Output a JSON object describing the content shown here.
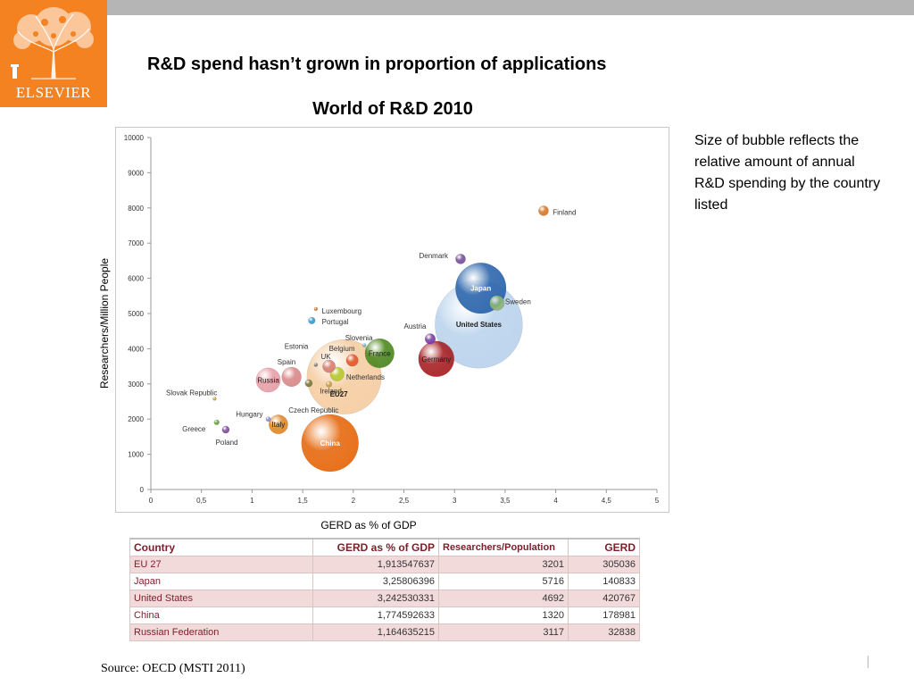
{
  "brand": {
    "logo_text": "ELSEVIER",
    "color": "#f58220"
  },
  "title": "R&D spend hasn’t grown in proportion of applications",
  "subtitle": "World of R&D 2010",
  "note": "Size of bubble reflects the relative amount of annual R&D spending by the country listed",
  "source": "Source: OECD (MSTI 2011)",
  "chart_data": {
    "type": "scatter",
    "title": "World of R&D 2010",
    "xlabel": "GERD as % of GDP",
    "ylabel": "Researchers/Million People",
    "xlim": [
      0,
      5
    ],
    "ylim": [
      0,
      10000
    ],
    "xticks": [
      "0",
      "0,5",
      "1",
      "1,5",
      "2",
      "2,5",
      "3",
      "3,5",
      "4",
      "4,5",
      "5"
    ],
    "yticks": [
      "0",
      "1000",
      "2000",
      "3000",
      "4000",
      "5000",
      "6000",
      "7000",
      "8000",
      "9000",
      "10000"
    ],
    "grid": false,
    "points": [
      {
        "label": "United States",
        "x": 3.24,
        "y": 4690,
        "size": 420767,
        "color": "#a9c8e8",
        "inside": true
      },
      {
        "label": "EU27",
        "x": 1.91,
        "y": 3200,
        "size": 305036,
        "color": "#f2c08a",
        "inside": true
      },
      {
        "label": "China",
        "x": 1.77,
        "y": 1320,
        "size": 178981,
        "color": "#e66a10",
        "inside": true
      },
      {
        "label": "Japan",
        "x": 3.26,
        "y": 5720,
        "size": 140833,
        "color": "#2e67ad",
        "inside": true
      },
      {
        "label": "Germany",
        "x": 2.82,
        "y": 3710,
        "size": 70000,
        "color": "#a82326",
        "inside": true
      },
      {
        "label": "France",
        "x": 2.26,
        "y": 3870,
        "size": 47000,
        "color": "#4f8a22",
        "inside": true
      },
      {
        "label": "Russia",
        "x": 1.16,
        "y": 3110,
        "size": 32838,
        "color": "#e8a0a8",
        "inside": true
      },
      {
        "label": "Spain",
        "x": 1.39,
        "y": 3200,
        "size": 21000,
        "color": "#d98a8a",
        "inside": false,
        "lx": 1.25,
        "ly": 3630
      },
      {
        "label": "Italy",
        "x": 1.26,
        "y": 1850,
        "size": 20000,
        "color": "#e08a2a",
        "inside": true
      },
      {
        "label": "Sweden",
        "x": 3.42,
        "y": 5300,
        "size": 12000,
        "color": "#8db57a",
        "inside": false,
        "lx": 3.5,
        "ly": 5340
      },
      {
        "label": "Netherlands",
        "x": 1.84,
        "y": 3280,
        "size": 11000,
        "color": "#b8c832",
        "inside": false,
        "lx": 1.93,
        "ly": 3200
      },
      {
        "label": "UK",
        "x": 1.76,
        "y": 3500,
        "size": 9000,
        "color": "#d97f73",
        "inside": false,
        "lx": 1.68,
        "ly": 3780
      },
      {
        "label": "Belgium",
        "x": 1.99,
        "y": 3670,
        "size": 8000,
        "color": "#e25a30",
        "inside": false,
        "lx": 1.76,
        "ly": 4010
      },
      {
        "label": "Denmark",
        "x": 3.06,
        "y": 6550,
        "size": 5500,
        "color": "#7a4f9c",
        "inside": false,
        "lx": 2.65,
        "ly": 6650
      },
      {
        "label": "Austria",
        "x": 2.76,
        "y": 4280,
        "size": 6000,
        "color": "#7a3fa3",
        "inside": false,
        "lx": 2.5,
        "ly": 4650
      },
      {
        "label": "Finland",
        "x": 3.88,
        "y": 7920,
        "size": 5500,
        "color": "#d87a2a",
        "inside": false,
        "lx": 3.97,
        "ly": 7880
      },
      {
        "label": "Czech Republic",
        "x": 1.56,
        "y": 3020,
        "size": 3000,
        "color": "#7d7a3e",
        "inside": false,
        "lx": 1.36,
        "ly": 2260
      },
      {
        "label": "Poland",
        "x": 0.74,
        "y": 1700,
        "size": 3000,
        "color": "#8250a0",
        "inside": false,
        "lx": 0.64,
        "ly": 1350
      },
      {
        "label": "Portugal",
        "x": 1.59,
        "y": 4800,
        "size": 2600,
        "color": "#3a9bd0",
        "inside": false,
        "lx": 1.69,
        "ly": 4770
      },
      {
        "label": "Ireland",
        "x": 1.76,
        "y": 2990,
        "size": 2000,
        "color": "#c7a04a",
        "inside": false,
        "lx": 1.67,
        "ly": 2800
      },
      {
        "label": "Greece",
        "x": 0.65,
        "y": 1910,
        "size": 1500,
        "color": "#6aa040",
        "inside": false,
        "lx": 0.31,
        "ly": 1720
      },
      {
        "label": "Hungary",
        "x": 1.16,
        "y": 2000,
        "size": 1300,
        "color": "#8a8acb",
        "inside": false,
        "lx": 0.84,
        "ly": 2140
      },
      {
        "label": "Slovenia",
        "x": 2.11,
        "y": 4100,
        "size": 500,
        "color": "#6ab0c7",
        "inside": false,
        "lx": 1.92,
        "ly": 4310
      },
      {
        "label": "Estonia",
        "x": 1.63,
        "y": 3540,
        "size": 250,
        "color": "#777777",
        "inside": false,
        "lx": 1.32,
        "ly": 4070
      },
      {
        "label": "Luxembourg",
        "x": 1.63,
        "y": 5130,
        "size": 300,
        "color": "#d87a30",
        "inside": false,
        "lx": 1.69,
        "ly": 5080
      },
      {
        "label": "Slovak Republic",
        "x": 0.63,
        "y": 2580,
        "size": 180,
        "color": "#c9a040",
        "inside": false,
        "lx": 0.15,
        "ly": 2750
      }
    ]
  },
  "table": {
    "headers": [
      "Country",
      "GERD as % of GDP",
      "Researchers/Population",
      "GERD"
    ],
    "rows": [
      [
        "EU 27",
        "1,913547637",
        "3201",
        "305036"
      ],
      [
        "Japan",
        "3,25806396",
        "5716",
        "140833"
      ],
      [
        "United States",
        "3,242530331",
        "4692",
        "420767"
      ],
      [
        "China",
        "1,774592633",
        "1320",
        "178981"
      ],
      [
        "Russian Federation",
        "1,164635215",
        "3117",
        "32838"
      ]
    ]
  }
}
